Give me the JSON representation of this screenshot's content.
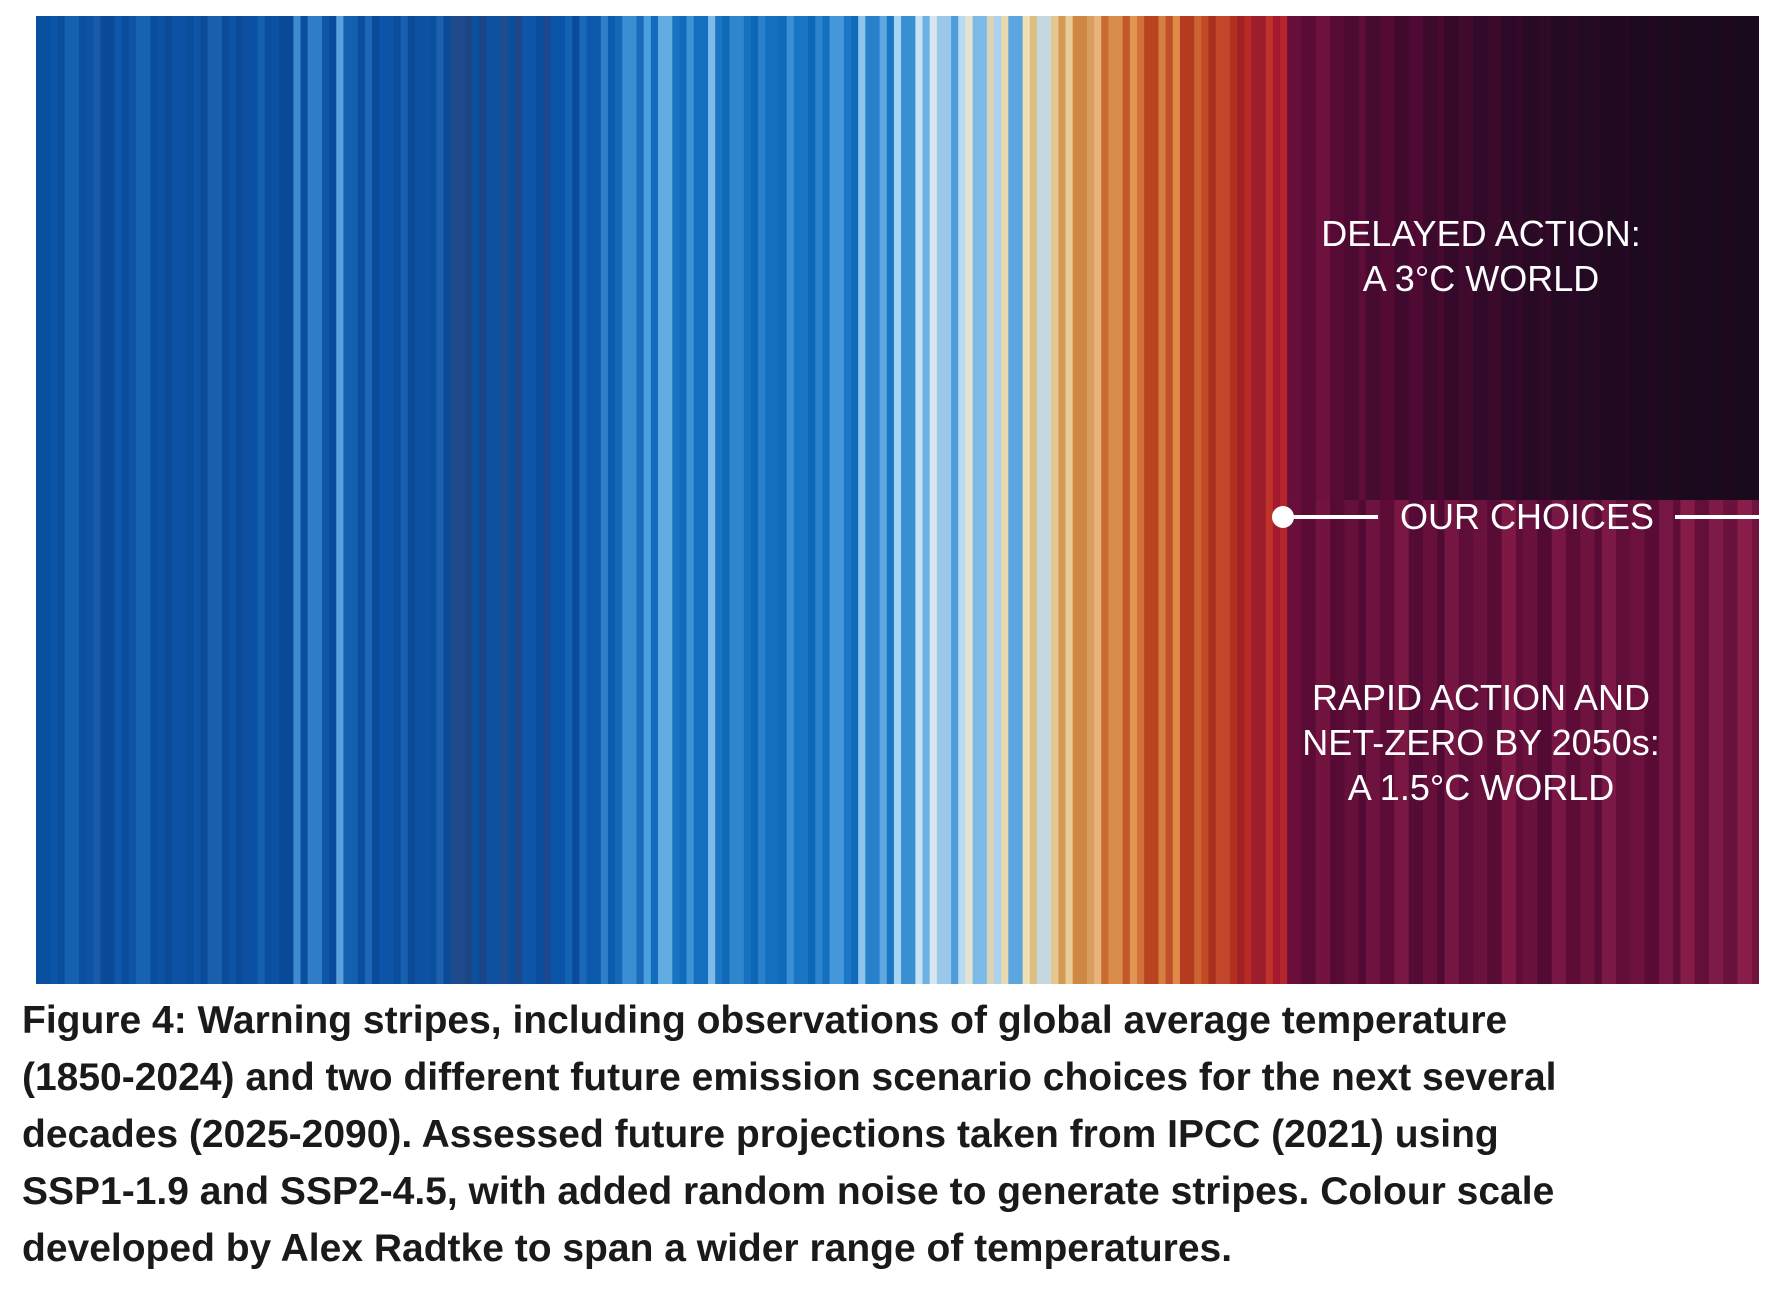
{
  "chart_data": {
    "type": "heatmap",
    "title": "",
    "xlabel": "",
    "ylabel": "",
    "description_kind": "warning stripes",
    "observed_years": [
      1850,
      2024
    ],
    "future_years": [
      2025,
      2090
    ],
    "observed_colors": [
      "#0a50a0",
      "#0b55a8",
      "#0a4d9c",
      "#1560b0",
      "#0a4fa1",
      "#0c53a6",
      "#1b5aa8",
      "#0a4b98",
      "#0e57aa",
      "#0a4c9b",
      "#0d54a6",
      "#1762b3",
      "#0a4d9e",
      "#0b52a5",
      "#0a4a97",
      "#0c51a3",
      "#0a4d9d",
      "#0e55a7",
      "#0a4b99",
      "#1a5fae",
      "#0a4c9a",
      "#0d53a5",
      "#0a4a96",
      "#0b50a2",
      "#1660b1",
      "#0a4e9f",
      "#0c52a4",
      "#0a4b99",
      "#3d8ad0",
      "#0a4f9f",
      "#2e7dc6",
      "#0d56a9",
      "#0a4c9b",
      "#5aa0dc",
      "#1460b0",
      "#0a4e9e",
      "#1d66b5",
      "#0a4b99",
      "#0c54a7",
      "#0a4d9c",
      "#1760b0",
      "#0a4a97",
      "#0d52a4",
      "#0b4f9f",
      "#1e5fae",
      "#0a4b98",
      "#1f4a8c",
      "#1c4585",
      "#0c4f9e",
      "#1a4688",
      "#0e519f",
      "#204b8c",
      "#0b4e9c",
      "#1d4787",
      "#0c55a7",
      "#0a4d9c",
      "#1c4890",
      "#0b55a8",
      "#1363b4",
      "#0a4c9b",
      "#1a68b8",
      "#0c5aab",
      "#2e7ec8",
      "#0d5dae",
      "#1567b7",
      "#3a8fd3",
      "#1b6bba",
      "#4aa0de",
      "#116cbc",
      "#62acE4",
      "#1a74c2",
      "#0f6bbb",
      "#3d93d6",
      "#1470bf",
      "#7fbbe8",
      "#1b77c4",
      "#0f69b9",
      "#2f86cd",
      "#1672c0",
      "#0e66b7",
      "#2a80ca",
      "#1370be",
      "#0f6ab9",
      "#3b8fd3",
      "#1a76c3",
      "#0e68b8",
      "#2d84cc",
      "#1270bf",
      "#4497d8",
      "#1b78c5",
      "#0f6bba",
      "#8dc4ec",
      "#2a81cb",
      "#5fa8df",
      "#1977c4",
      "#a6d3f0",
      "#3a8fd2",
      "#c9e2f3",
      "#6db2e4",
      "#d7e6ee",
      "#99c8eb",
      "#4c9dda",
      "#b9dbf2",
      "#e5e2d2",
      "#7cbbe7",
      "#d9d2b8",
      "#a9d2ee",
      "#e8d9b0",
      "#5ba6de",
      "#efe0b6",
      "#dcbf83",
      "#c5d8e0",
      "#e6c68c",
      "#d49a55",
      "#e8cd97",
      "#cf8844",
      "#d7a05e",
      "#e8b37a",
      "#c86b30",
      "#d98b4a",
      "#c2572a",
      "#e09553",
      "#cf7138",
      "#b84420",
      "#d47e40",
      "#c0502a",
      "#e08a48",
      "#b53b20",
      "#cc6330",
      "#c14a24",
      "#a8301e",
      "#c1462a",
      "#b2301f",
      "#a02226",
      "#b72b24",
      "#9c1e2c",
      "#c0332a",
      "#a3192e",
      "#b42629"
    ],
    "future_top_colors": [
      "#680e3a",
      "#5a0b36",
      "#6d123e",
      "#560a34",
      "#4d0a32",
      "#5e0c38",
      "#470a30",
      "#550a34",
      "#400a2e",
      "#4f0a33",
      "#3c0a2c",
      "#48092f",
      "#35092a",
      "#3f0a2d",
      "#300a28",
      "#3a0a2b",
      "#2c0926",
      "#33092a",
      "#280a25",
      "#2f0928",
      "#250a23",
      "#2a0926",
      "#220a22",
      "#270924",
      "#200a21",
      "#230922",
      "#1e0a20",
      "#210921",
      "#1c0a1f",
      "#1f0920",
      "#1b0a1e",
      "#1d091f",
      "#1a0a1e",
      "#1c091e",
      "#190a1d",
      "#1b091e"
    ],
    "future_bottom_colors": [
      "#6a0f3c",
      "#5a0b36",
      "#72143f",
      "#560a34",
      "#64103a",
      "#500a33",
      "#6e1240",
      "#5c0c37",
      "#7a1843",
      "#540b35",
      "#68103c",
      "#4f0a33",
      "#751542",
      "#5e0d38",
      "#6b113d",
      "#570b35",
      "#7d1944",
      "#600e39",
      "#6a113d",
      "#520a34",
      "#781745",
      "#5d0c37",
      "#6e123e",
      "#560b35",
      "#7b1845",
      "#610e39",
      "#6c113d",
      "#590b36",
      "#761644",
      "#5f0d38",
      "#851c48",
      "#640f3a",
      "#7e1a46",
      "#6a113c",
      "#8a1e4a",
      "#70133f"
    ],
    "annotations": {
      "delayed_line1": "DELAYED ACTION:",
      "delayed_line2": "A 3°C WORLD",
      "choices": "OUR CHOICES",
      "rapid_line1": "RAPID ACTION AND",
      "rapid_line2": "NET-ZERO BY 2050s:",
      "rapid_line3": "A 1.5°C WORLD"
    }
  },
  "caption": {
    "line1": "Figure 4: Warning stripes, including observations of global average temperature",
    "line2": "(1850-2024) and two different future emission scenario choices for the next several",
    "line3": "decades (2025-2090). Assessed future projections taken from IPCC (2021) using",
    "line4": "SSP1-1.9 and SSP2-4.5, with added random noise to generate stripes. Colour scale",
    "line5": "developed by Alex Radtke to span a wider range of temperatures."
  }
}
